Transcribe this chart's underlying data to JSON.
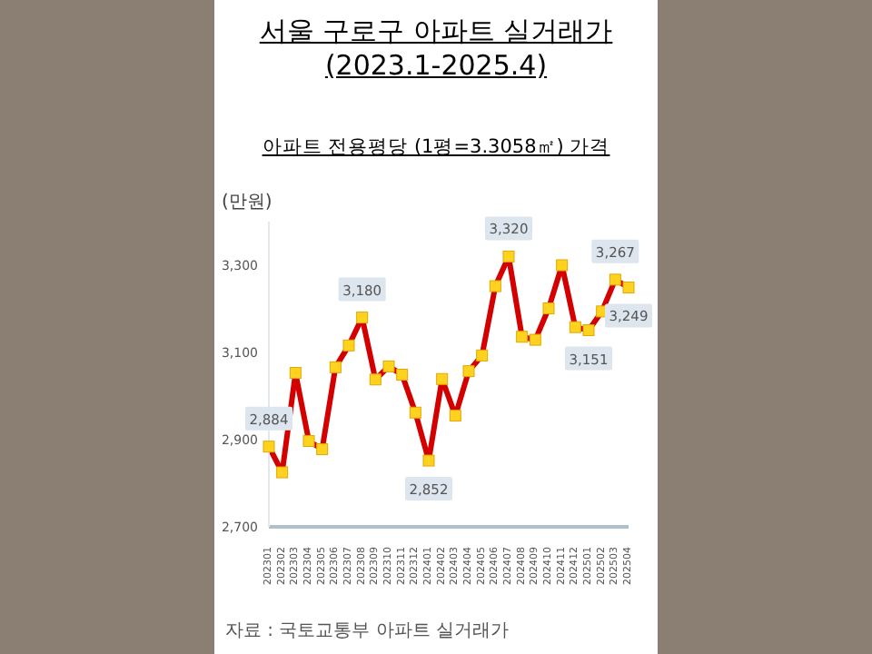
{
  "chart_data": {
    "type": "line",
    "title": "서울 구로구 아파트 실거래가 (2023.1-2025.4)",
    "subtitle": "아파트 전용평당 (1평=3.3058㎡) 가격",
    "ylabel": "(만원)",
    "categories": [
      "202301",
      "202302",
      "202303",
      "202304",
      "202305",
      "202306",
      "202307",
      "202308",
      "202309",
      "202310",
      "202311",
      "202312",
      "202401",
      "202402",
      "202403",
      "202404",
      "202405",
      "202406",
      "202407",
      "202408",
      "202409",
      "202410",
      "202411",
      "202412",
      "202501",
      "202502",
      "202503",
      "202504"
    ],
    "series": [
      {
        "color": "#d40000",
        "values": [
          2884,
          2825,
          3053,
          2897,
          2878,
          3066,
          3116,
          3180,
          3038,
          3068,
          3049,
          2962,
          2852,
          3039,
          2955,
          3057,
          3093,
          3252,
          3320,
          3136,
          3129,
          3201,
          3300,
          3158,
          3151,
          3194,
          3267,
          3249
        ],
        "value_labels": [
          "2,884",
          null,
          null,
          null,
          null,
          null,
          null,
          "3,180",
          null,
          null,
          null,
          null,
          "2,852",
          null,
          null,
          null,
          null,
          null,
          "3,320",
          null,
          null,
          null,
          null,
          null,
          "3,151",
          null,
          "3,267",
          "3,249"
        ]
      }
    ],
    "marker": "square",
    "ylim": [
      2700,
      3400
    ],
    "yticks": [
      {
        "value": 2700,
        "label": "2,700"
      },
      {
        "value": 2900,
        "label": "2,900"
      },
      {
        "value": 3100,
        "label": "3,100"
      },
      {
        "value": 3300,
        "label": "3,300"
      }
    ],
    "grid": false,
    "legend": false,
    "annotations": [
      "자료 : 국토교통부 아파트 실거래가"
    ]
  }
}
